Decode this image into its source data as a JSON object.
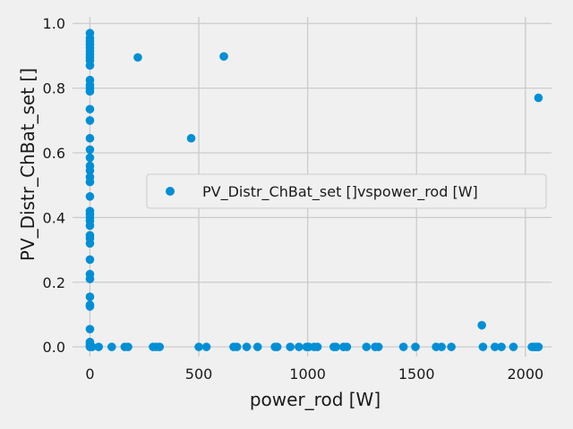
{
  "chart_data": {
    "type": "scatter",
    "xlabel": "power_rod [W]",
    "ylabel": "PV_Distr_ChBat_set []",
    "xlim": [
      -80,
      2120
    ],
    "ylim": [
      -0.03,
      1.02
    ],
    "grid": true,
    "legend_position": "center-right",
    "x_ticks": [
      0,
      500,
      1000,
      1500,
      2000
    ],
    "y_ticks": [
      0.0,
      0.2,
      0.4,
      0.6,
      0.8,
      1.0
    ],
    "x_tick_labels": [
      "0",
      "500",
      "1000",
      "1500",
      "2000"
    ],
    "y_tick_labels": [
      "0.0",
      "0.2",
      "0.4",
      "0.6",
      "0.8",
      "1.0"
    ],
    "colors": {
      "marker": "#008fd5",
      "background": "#f0f0f0",
      "grid": "#cbcbcb"
    },
    "series": [
      {
        "name": "PV_Distr_ChBat_set []vspower_rod [W]",
        "points": [
          [
            0,
            0.97
          ],
          [
            0,
            0.955
          ],
          [
            0,
            0.945
          ],
          [
            0,
            0.935
          ],
          [
            0,
            0.925
          ],
          [
            0,
            0.915
          ],
          [
            0,
            0.905
          ],
          [
            0,
            0.895
          ],
          [
            0,
            0.885
          ],
          [
            0,
            0.87
          ],
          [
            0,
            0.825
          ],
          [
            0,
            0.81
          ],
          [
            0,
            0.8
          ],
          [
            0,
            0.79
          ],
          [
            0,
            0.735
          ],
          [
            0,
            0.7
          ],
          [
            0,
            0.645
          ],
          [
            0,
            0.61
          ],
          [
            0,
            0.585
          ],
          [
            0,
            0.56
          ],
          [
            0,
            0.545
          ],
          [
            0,
            0.525
          ],
          [
            0,
            0.51
          ],
          [
            0,
            0.465
          ],
          [
            0,
            0.42
          ],
          [
            0,
            0.41
          ],
          [
            0,
            0.4
          ],
          [
            0,
            0.39
          ],
          [
            0,
            0.375
          ],
          [
            0,
            0.345
          ],
          [
            0,
            0.335
          ],
          [
            0,
            0.32
          ],
          [
            0,
            0.27
          ],
          [
            0,
            0.225
          ],
          [
            0,
            0.21
          ],
          [
            0,
            0.155
          ],
          [
            0,
            0.13
          ],
          [
            0,
            0.125
          ],
          [
            0,
            0.055
          ],
          [
            0,
            0.015
          ],
          [
            0,
            0.01
          ],
          [
            0,
            0.005
          ],
          [
            0,
            0.0
          ],
          [
            10,
            0.0
          ],
          [
            40,
            0.0
          ],
          [
            100,
            0.0
          ],
          [
            160,
            0.0
          ],
          [
            175,
            0.0
          ],
          [
            220,
            0.895
          ],
          [
            290,
            0.0
          ],
          [
            305,
            0.0
          ],
          [
            320,
            0.0
          ],
          [
            465,
            0.645
          ],
          [
            500,
            0.0
          ],
          [
            535,
            0.0
          ],
          [
            615,
            0.898
          ],
          [
            660,
            0.0
          ],
          [
            675,
            0.0
          ],
          [
            720,
            0.0
          ],
          [
            770,
            0.0
          ],
          [
            850,
            0.0
          ],
          [
            860,
            0.0
          ],
          [
            920,
            0.0
          ],
          [
            960,
            0.0
          ],
          [
            995,
            0.0
          ],
          [
            1005,
            0.0
          ],
          [
            1030,
            0.0
          ],
          [
            1045,
            0.0
          ],
          [
            1120,
            0.0
          ],
          [
            1130,
            0.0
          ],
          [
            1165,
            0.0
          ],
          [
            1180,
            0.0
          ],
          [
            1270,
            0.0
          ],
          [
            1310,
            0.0
          ],
          [
            1325,
            0.0
          ],
          [
            1440,
            0.0
          ],
          [
            1495,
            0.0
          ],
          [
            1590,
            0.0
          ],
          [
            1615,
            0.0
          ],
          [
            1660,
            0.0
          ],
          [
            1800,
            0.067
          ],
          [
            1805,
            0.0
          ],
          [
            1860,
            0.0
          ],
          [
            1890,
            0.0
          ],
          [
            1945,
            0.0
          ],
          [
            2030,
            0.0
          ],
          [
            2040,
            0.0
          ],
          [
            2045,
            0.0
          ],
          [
            2050,
            0.0
          ],
          [
            2055,
            0.0
          ],
          [
            2058,
            0.0
          ],
          [
            2060,
            0.0
          ],
          [
            2060,
            0.77
          ]
        ]
      }
    ]
  }
}
